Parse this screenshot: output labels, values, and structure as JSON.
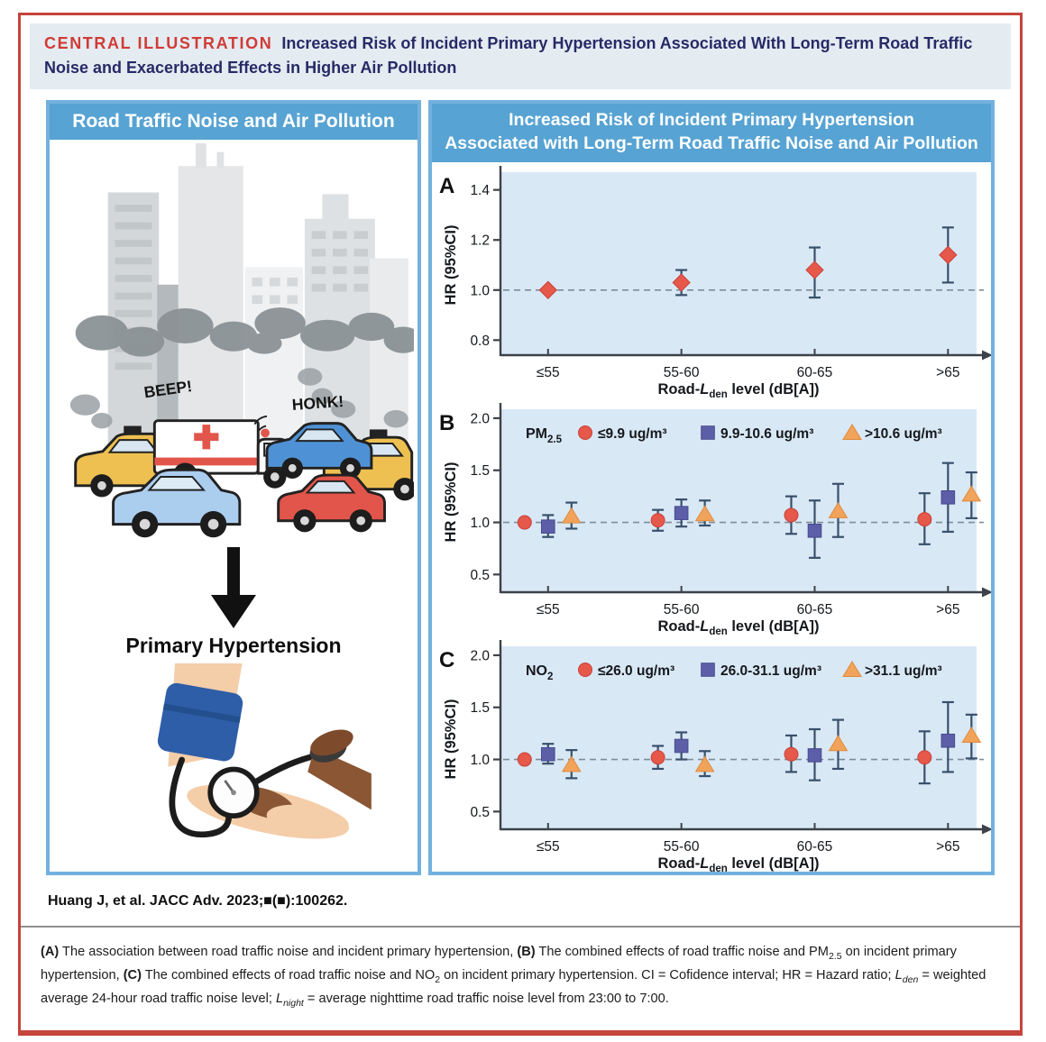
{
  "header": {
    "label": "CENTRAL ILLUSTRATION",
    "title": "Increased Risk of Incident Primary Hypertension Associated With Long-Term Road Traffic Noise and Exacerbated Effects in Higher Air Pollution"
  },
  "left_panel": {
    "title": "Road Traffic Noise and Air Pollution",
    "city": {
      "beep": "BEEP!",
      "honk": "HONK!"
    },
    "outcome_label": "Primary Hypertension"
  },
  "right_panel": {
    "title_line1": "Increased Risk of Incident Primary Hypertension",
    "title_line2": "Associated with Long-Term Road Traffic Noise and Air Pollution"
  },
  "citation": "Huang J, et al. JACC Adv. 2023;■(■):100262.",
  "caption": {
    "segments": [
      {
        "t": "(A)",
        "b": true
      },
      {
        "t": " The association between road traffic noise and incident primary hypertension, "
      },
      {
        "t": "(B)",
        "b": true
      },
      {
        "t": " The combined effects of road traffic noise and PM"
      },
      {
        "t": "2.5",
        "sub": true
      },
      {
        "t": " on incident primary hypertension, "
      },
      {
        "t": "(C)",
        "b": true
      },
      {
        "t": " The combined effects of road traffic noise and NO"
      },
      {
        "t": "2",
        "sub": true
      },
      {
        "t": " on incident primary hypertension. CI = Cofidence interval; HR = Hazard ratio; "
      },
      {
        "t": "L",
        "i": true
      },
      {
        "t": "den",
        "sub": true,
        "i": true
      },
      {
        "t": " = weighted average 24-hour road traffic noise level; "
      },
      {
        "t": "L",
        "i": true
      },
      {
        "t": "night",
        "sub": true,
        "i": true
      },
      {
        "t": " = average nighttime road traffic noise level from 23:00 to 7:00."
      }
    ]
  },
  "colors": {
    "outer_border_red": "#c5443c",
    "panel_header_blue": "#57a3d3",
    "panel_border_blue": "#72b1de",
    "plot_background": "#d9e8f5",
    "marker_red": "#e6584a",
    "marker_purple": "#5c5fa7",
    "marker_orange": "#f2a35b",
    "errorbar": "#38506b"
  },
  "chart_data": [
    {
      "panel": "A",
      "type": "scatter",
      "ylabel": "HR (95%CI)",
      "xlabel": {
        "pre": "Road-",
        "var": "L",
        "sub": "den",
        "post": " level (dB[A])"
      },
      "categories": [
        "≤55",
        "55-60",
        "60-65",
        ">65"
      ],
      "yticks": [
        "0.8",
        "1.0",
        "1.2",
        "1.4"
      ],
      "ymin": 0.74,
      "ymax": 1.46,
      "refline": 1.0,
      "grid": false,
      "series": [
        {
          "name": "HR",
          "marker": "diamond",
          "color": "#e6584a",
          "edge": "#c8423a",
          "points": [
            {
              "hr": 1.0,
              "lo": null,
              "hi": null
            },
            {
              "hr": 1.03,
              "lo": 0.98,
              "hi": 1.08
            },
            {
              "hr": 1.08,
              "lo": 0.97,
              "hi": 1.17
            },
            {
              "hr": 1.14,
              "lo": 1.03,
              "hi": 1.25
            }
          ]
        }
      ]
    },
    {
      "panel": "B",
      "type": "scatter",
      "ylabel": "HR (95%CI)",
      "xlabel": {
        "pre": "Road-",
        "var": "L",
        "sub": "den",
        "post": " level (dB[A])"
      },
      "categories": [
        "≤55",
        "55-60",
        "60-65",
        ">65"
      ],
      "yticks": [
        "0.5",
        "1.0",
        "1.5",
        "2.0"
      ],
      "ymin": 0.33,
      "ymax": 2.06,
      "refline": 1.0,
      "grid": false,
      "legend": {
        "title_main": "PM",
        "title_sub": "2.5",
        "position": "top-inside"
      },
      "series": [
        {
          "label": "≤9.9 ug/m³",
          "marker": "circle",
          "color": "#e6584a",
          "edge": "#c8423a",
          "points": [
            {
              "hr": 1.0,
              "lo": null,
              "hi": null
            },
            {
              "hr": 1.02,
              "lo": 0.92,
              "hi": 1.12
            },
            {
              "hr": 1.07,
              "lo": 0.89,
              "hi": 1.25
            },
            {
              "hr": 1.03,
              "lo": 0.79,
              "hi": 1.28
            }
          ]
        },
        {
          "label": "9.9-10.6 ug/m³",
          "marker": "square",
          "color": "#5c5fa7",
          "edge": "#474b8f",
          "points": [
            {
              "hr": 0.96,
              "lo": 0.86,
              "hi": 1.07
            },
            {
              "hr": 1.09,
              "lo": 0.96,
              "hi": 1.22
            },
            {
              "hr": 0.92,
              "lo": 0.66,
              "hi": 1.21
            },
            {
              "hr": 1.24,
              "lo": 0.91,
              "hi": 1.57
            }
          ]
        },
        {
          "label": ">10.6 ug/m³",
          "marker": "triangle",
          "color": "#f2a35b",
          "edge": "#df8a3c",
          "points": [
            {
              "hr": 1.06,
              "lo": 0.94,
              "hi": 1.19
            },
            {
              "hr": 1.08,
              "lo": 0.97,
              "hi": 1.21
            },
            {
              "hr": 1.11,
              "lo": 0.86,
              "hi": 1.37
            },
            {
              "hr": 1.27,
              "lo": 1.04,
              "hi": 1.48
            }
          ]
        }
      ]
    },
    {
      "panel": "C",
      "type": "scatter",
      "ylabel": "HR (95%CI)",
      "xlabel": {
        "pre": "Road-",
        "var": "L",
        "sub": "den",
        "post": " level (dB[A])"
      },
      "categories": [
        "≤55",
        "55-60",
        "60-65",
        ">65"
      ],
      "yticks": [
        "0.5",
        "1.0",
        "1.5",
        "2.0"
      ],
      "ymin": 0.33,
      "ymax": 2.06,
      "refline": 1.0,
      "grid": false,
      "legend": {
        "title_main": "NO",
        "title_sub": "2",
        "position": "top-inside"
      },
      "series": [
        {
          "label": "≤26.0 ug/m³",
          "marker": "circle",
          "color": "#e6584a",
          "edge": "#c8423a",
          "points": [
            {
              "hr": 1.0,
              "lo": null,
              "hi": null
            },
            {
              "hr": 1.02,
              "lo": 0.91,
              "hi": 1.13
            },
            {
              "hr": 1.05,
              "lo": 0.88,
              "hi": 1.23
            },
            {
              "hr": 1.02,
              "lo": 0.77,
              "hi": 1.27
            }
          ]
        },
        {
          "label": "26.0-31.1 ug/m³",
          "marker": "square",
          "color": "#5c5fa7",
          "edge": "#474b8f",
          "points": [
            {
              "hr": 1.05,
              "lo": 0.96,
              "hi": 1.15
            },
            {
              "hr": 1.13,
              "lo": 1.0,
              "hi": 1.26
            },
            {
              "hr": 1.04,
              "lo": 0.8,
              "hi": 1.29
            },
            {
              "hr": 1.18,
              "lo": 0.88,
              "hi": 1.55
            }
          ]
        },
        {
          "label": ">31.1 ug/m³",
          "marker": "triangle",
          "color": "#f2a35b",
          "edge": "#df8a3c",
          "points": [
            {
              "hr": 0.95,
              "lo": 0.82,
              "hi": 1.09
            },
            {
              "hr": 0.95,
              "lo": 0.84,
              "hi": 1.08
            },
            {
              "hr": 1.15,
              "lo": 0.91,
              "hi": 1.38
            },
            {
              "hr": 1.23,
              "lo": 1.01,
              "hi": 1.43
            }
          ]
        }
      ]
    }
  ]
}
